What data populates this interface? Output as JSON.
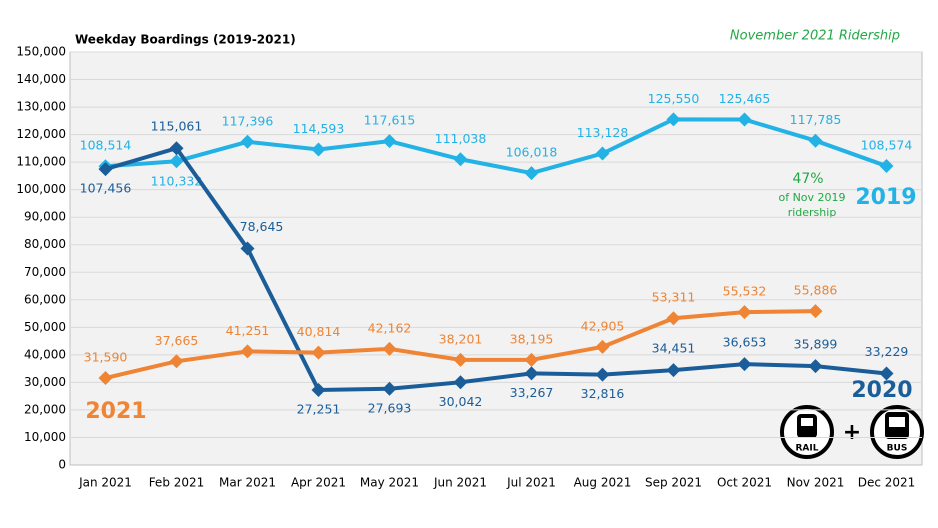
{
  "chart_data": {
    "type": "line",
    "title": "Weekday Boardings (2019-2021)",
    "subtitle": "November 2021 Ridership",
    "annotation": [
      "47%",
      "of Nov 2019",
      "ridership"
    ],
    "icons": [
      "RAIL",
      "BUS"
    ],
    "icon_joiner": "+",
    "categories": [
      "Jan 2021",
      "Feb 2021",
      "Mar 2021",
      "Apr 2021",
      "May 2021",
      "Jun 2021",
      "Jul 2021",
      "Aug 2021",
      "Sep 2021",
      "Oct 2021",
      "Nov 2021",
      "Dec 2021"
    ],
    "series": [
      {
        "name": "2019",
        "color": "#22b2e6",
        "values": [
          108514,
          110332,
          117396,
          114593,
          117615,
          111038,
          106018,
          113128,
          125550,
          125465,
          117785,
          108574
        ],
        "value_labels": [
          "108,514",
          "110,332",
          "117,396",
          "114,593",
          "117,615",
          "111,038",
          "106,018",
          "113,128",
          "125,550",
          "125,465",
          "117,785",
          "108,574"
        ]
      },
      {
        "name": "2020",
        "color": "#1b5d98",
        "values": [
          107456,
          115061,
          78645,
          27251,
          27693,
          30042,
          33267,
          32816,
          34451,
          36653,
          35899,
          33229
        ],
        "value_labels": [
          "107,456",
          "115,061",
          "78,645",
          "27,251",
          "27,693",
          "30,042",
          "33,267",
          "32,816",
          "34,451",
          "36,653",
          "35,899",
          "33,229"
        ]
      },
      {
        "name": "2021",
        "color": "#ee8434",
        "values": [
          31590,
          37665,
          41251,
          40814,
          42162,
          38201,
          38195,
          42905,
          53311,
          55532,
          55886,
          null
        ],
        "value_labels": [
          "31,590",
          "37,665",
          "41,251",
          "40,814",
          "42,162",
          "38,201",
          "38,195",
          "42,905",
          "53,311",
          "55,532",
          "55,886",
          null
        ]
      }
    ],
    "ylim": [
      0,
      150000
    ],
    "yticks": [
      0,
      {
        "value": 10000,
        "label": "10,000"
      },
      {
        "value": 20000,
        "label": "20,000"
      },
      {
        "value": 30000,
        "label": "30,000"
      },
      {
        "value": 40000,
        "label": "40,000"
      },
      {
        "value": 50000,
        "label": "50,000"
      },
      {
        "value": 60000,
        "label": "60,000"
      },
      {
        "value": 70000,
        "label": "70,000"
      },
      {
        "value": 80000,
        "label": "80,000"
      },
      {
        "value": 90000,
        "label": "90,000"
      },
      {
        "value": 100000,
        "label": "100,000"
      },
      {
        "value": 110000,
        "label": "110,000"
      },
      {
        "value": 120000,
        "label": "120,000"
      },
      {
        "value": 130000,
        "label": "130,000"
      },
      {
        "value": 140000,
        "label": "140,000"
      },
      {
        "value": {
          "value": 150000
        },
        "label": "150,000"
      }
    ],
    "grid": true
  }
}
